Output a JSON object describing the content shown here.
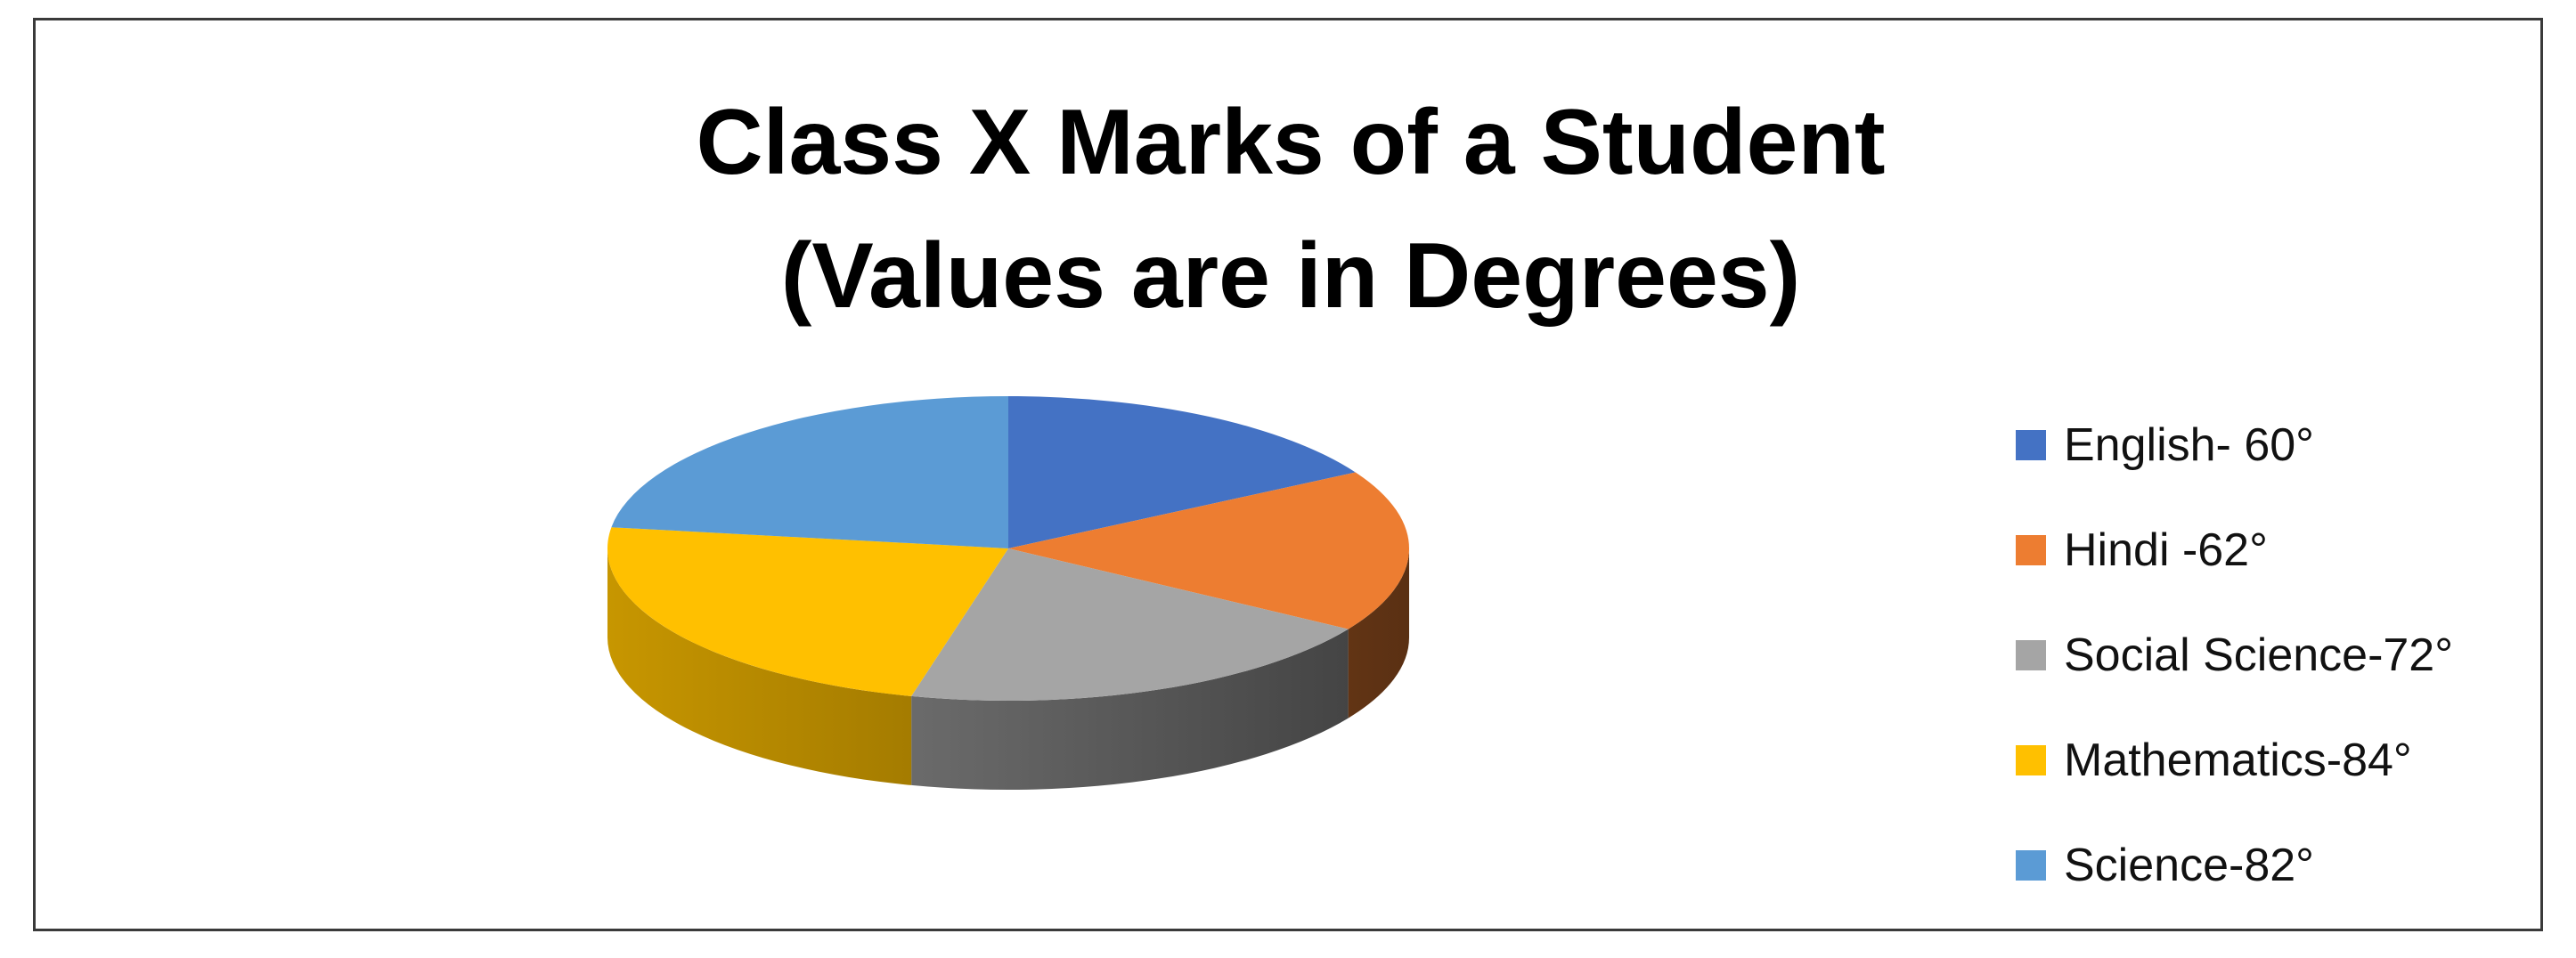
{
  "chart_data": {
    "type": "pie",
    "title_lines": [
      "Class X Marks of a Student",
      "(Values are in Degrees)"
    ],
    "categories": [
      "English",
      "Hindi",
      "Social Science",
      "Mathematics",
      "Science"
    ],
    "values": [
      60,
      62,
      72,
      84,
      82
    ],
    "unit": "°",
    "colors": [
      "#4472C4",
      "#ED7D31",
      "#A5A5A5",
      "#FFC000",
      "#5B9BD5"
    ],
    "style": "3d",
    "legend": {
      "position": "right",
      "items": [
        "English- 60°",
        "Hindi -62°",
        "Social Science-72°",
        "Mathematics-84°",
        "Science-82°"
      ]
    }
  }
}
